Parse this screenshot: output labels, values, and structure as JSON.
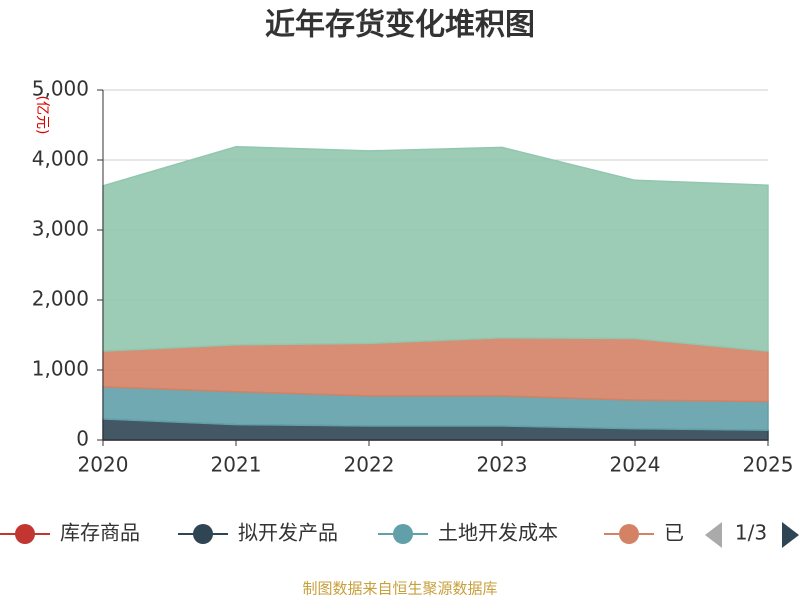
{
  "chart_data": {
    "type": "stacked-area",
    "title": "近年存货变化堆积图",
    "y_unit": "(亿元)",
    "categories": [
      "2020",
      "2021",
      "2022",
      "2023",
      "2024",
      "2025"
    ],
    "series": [
      {
        "name": "库存商品",
        "color": "#c23531",
        "values": [
          0,
          0,
          0,
          0,
          0,
          0
        ]
      },
      {
        "name": "拟开发产品",
        "color": "#2f4554",
        "values": [
          300,
          220,
          200,
          200,
          160,
          140
        ]
      },
      {
        "name": "土地开发成本",
        "color": "#61a0a8",
        "values": [
          460,
          470,
          430,
          430,
          410,
          410
        ]
      },
      {
        "name": "已",
        "color": "#d48265",
        "values": [
          510,
          670,
          750,
          830,
          880,
          720
        ]
      },
      {
        "color": "#91c7ae",
        "values": [
          2360,
          2830,
          2750,
          2720,
          2260,
          2370
        ]
      }
    ],
    "ylim": [
      0,
      5000
    ],
    "yticks": [
      0,
      {
        "value": 1000,
        "label": "1,000"
      },
      {
        "value": 2000,
        "label": "2,000"
      },
      {
        "value": 3000,
        "label": "3,000"
      },
      {
        "value": 4000,
        "label": "4,000"
      },
      {
        "value": 5000,
        "label": "5,000"
      }
    ],
    "grid": true,
    "legend_page": "1/3",
    "source": "制图数据来自恒生聚源数据库"
  }
}
